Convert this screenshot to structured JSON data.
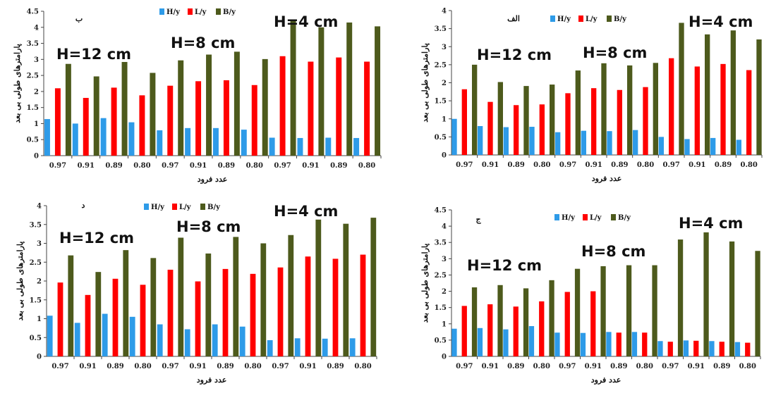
{
  "legend_labels": [
    "H/y",
    "L/y",
    "B/y"
  ],
  "colors": {
    "H": "#2e9be8",
    "L": "#ff0000",
    "B": "#4d5a1c"
  },
  "xlabel": "عدد فرود",
  "ylabel": "پارامترهای طولی بی بعد",
  "chart_data": [
    {
      "id": "tl",
      "panel_label": "ب",
      "type": "bar",
      "categories": [
        "0.97",
        "0.91",
        "0.89",
        "0.80",
        "0.97",
        "0.91",
        "0.89",
        "0.80",
        "0.97",
        "0.91",
        "0.89",
        "0.80"
      ],
      "groups": [
        "H=12 cm",
        "H=8 cm",
        "H=4 cm"
      ],
      "ylim": [
        0,
        4.5
      ],
      "yticks": [
        0,
        0.5,
        1,
        1.5,
        2,
        2.5,
        3,
        3.5,
        4,
        4.5
      ],
      "series": [
        {
          "name": "H/y",
          "values": [
            1.14,
            1.0,
            1.17,
            1.04,
            0.79,
            0.86,
            0.86,
            0.81,
            0.56,
            0.55,
            0.56,
            0.55
          ]
        },
        {
          "name": "L/y",
          "values": [
            2.1,
            1.8,
            2.12,
            1.88,
            2.18,
            2.32,
            2.35,
            2.2,
            3.1,
            2.93,
            3.06,
            2.93
          ]
        },
        {
          "name": "B/y",
          "values": [
            2.86,
            2.47,
            2.92,
            2.58,
            2.97,
            3.15,
            3.24,
            3.01,
            4.24,
            4.0,
            4.15,
            4.03
          ]
        }
      ]
    },
    {
      "id": "tr",
      "panel_label": "الف",
      "type": "bar",
      "categories": [
        "0.97",
        "0.91",
        "0.89",
        "0.80",
        "0.97",
        "0.91",
        "0.89",
        "0.80",
        "0.97",
        "0.91",
        "0.89",
        "0.80"
      ],
      "groups": [
        "H=12 cm",
        "H=8 cm",
        "H=4 cm"
      ],
      "ylim": [
        0,
        4
      ],
      "yticks": [
        0,
        0.5,
        1,
        1.5,
        2,
        2.5,
        3,
        3.5,
        4
      ],
      "series": [
        {
          "name": "H/y",
          "values": [
            1.0,
            0.8,
            0.77,
            0.78,
            0.63,
            0.67,
            0.66,
            0.69,
            0.5,
            0.44,
            0.47,
            0.42
          ]
        },
        {
          "name": "L/y",
          "values": [
            1.82,
            1.47,
            1.38,
            1.4,
            1.71,
            1.85,
            1.8,
            1.88,
            2.68,
            2.45,
            2.52,
            2.35
          ]
        },
        {
          "name": "B/y",
          "values": [
            2.5,
            2.02,
            1.91,
            1.95,
            2.34,
            2.54,
            2.48,
            2.55,
            3.66,
            3.34,
            3.45,
            3.2
          ]
        }
      ]
    },
    {
      "id": "bl",
      "panel_label": "د",
      "type": "bar",
      "categories": [
        "0.97",
        "0.91",
        "0.89",
        "0.80",
        "0.97",
        "0.91",
        "0.89",
        "0.80",
        "0.97",
        "0.91",
        "0.89",
        "0.80"
      ],
      "groups": [
        "H=12 cm",
        "H=8 cm",
        "H=4 cm"
      ],
      "ylim": [
        0,
        4
      ],
      "yticks": [
        0,
        0.5,
        1,
        1.5,
        2,
        2.5,
        3,
        3.5,
        4
      ],
      "series": [
        {
          "name": "H/y",
          "values": [
            1.08,
            0.89,
            1.13,
            1.05,
            0.85,
            0.72,
            0.85,
            0.79,
            0.43,
            0.48,
            0.47,
            0.48
          ]
        },
        {
          "name": "L/y",
          "values": [
            1.96,
            1.63,
            2.06,
            1.9,
            2.3,
            1.99,
            2.32,
            2.19,
            2.36,
            2.65,
            2.59,
            2.7
          ]
        },
        {
          "name": "B/y",
          "values": [
            2.68,
            2.24,
            2.82,
            2.61,
            3.15,
            2.73,
            3.17,
            3.0,
            3.22,
            3.63,
            3.52,
            3.68
          ]
        }
      ]
    },
    {
      "id": "br",
      "panel_label": "ج",
      "type": "bar",
      "categories": [
        "0.97",
        "0.91",
        "0.89",
        "0.80",
        "0.97",
        "0.91",
        "0.89",
        "0.80",
        "0.97",
        "0.91",
        "0.89",
        "0.80"
      ],
      "groups": [
        "H=12 cm",
        "H=8 cm",
        "H=4 cm"
      ],
      "ylim": [
        0,
        4.5
      ],
      "yticks": [
        0,
        0.5,
        1,
        1.5,
        2,
        2.5,
        3,
        3.5,
        4,
        4.5
      ],
      "series": [
        {
          "name": "H/y",
          "values": [
            0.85,
            0.87,
            0.83,
            0.93,
            0.73,
            0.72,
            0.75,
            0.75,
            0.47,
            0.49,
            0.47,
            0.44
          ]
        },
        {
          "name": "L/y",
          "values": [
            1.55,
            1.6,
            1.53,
            1.69,
            1.98,
            2.0,
            0.73,
            0.73,
            0.45,
            0.48,
            0.45,
            0.42
          ]
        },
        {
          "name": "B/y",
          "values": [
            2.12,
            2.19,
            2.09,
            2.34,
            2.69,
            2.77,
            2.8,
            2.8,
            3.59,
            3.81,
            3.53,
            3.24
          ]
        }
      ]
    }
  ]
}
